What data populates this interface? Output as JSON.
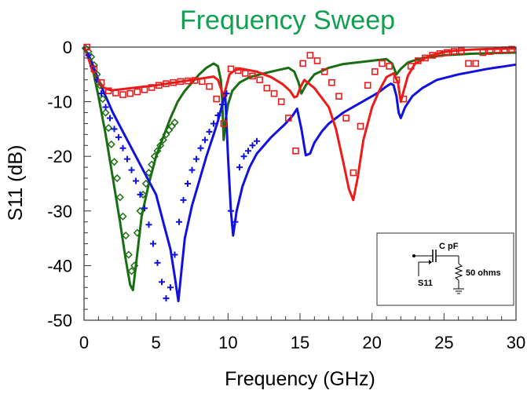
{
  "chart_data": {
    "type": "line",
    "title": "Frequency Sweep",
    "xlabel": "Frequency (GHz)",
    "ylabel": "S11 (dB)",
    "xlim": [
      0,
      30
    ],
    "ylim": [
      -50,
      0
    ],
    "xticks": [
      "0",
      "5",
      "10",
      "15",
      "20",
      "25",
      "30"
    ],
    "yticks": [
      "0",
      "-10",
      "-20",
      "-30",
      "-40",
      "-50"
    ],
    "grid": false,
    "colors": {
      "title": "#10a050",
      "green": "#1a6e12",
      "blue": "#1010e0",
      "red": "#ee1a1a"
    },
    "inset": {
      "capacitor_label": "C pF",
      "port_label": "S11",
      "resistor_label": "50 ohms"
    },
    "series": [
      {
        "color": "#1a6e12",
        "style": "line",
        "x": [
          0,
          0.3,
          0.6,
          1.0,
          1.5,
          2.0,
          2.5,
          2.9,
          3.2,
          3.4,
          3.6,
          4.0,
          4.5,
          5.0,
          5.5,
          6.0,
          6.5,
          7.0,
          7.5,
          8.0,
          8.5,
          9.0,
          9.3,
          9.5,
          9.6,
          9.7,
          9.85,
          10.0,
          10.3,
          10.8,
          11.5,
          12.5,
          13.5,
          14.2,
          14.6,
          14.9,
          15.1,
          15.4,
          16.0,
          17.0,
          18.0,
          19.0,
          20.0,
          21.0,
          21.4,
          21.7,
          22.0,
          22.5,
          23.5,
          25.0,
          27.0,
          30.0
        ],
        "y": [
          0,
          -1.5,
          -4,
          -9,
          -16,
          -24,
          -32,
          -39,
          -43.5,
          -44.5,
          -40,
          -31,
          -25,
          -20,
          -16.5,
          -13,
          -10,
          -8,
          -6.5,
          -5,
          -3.8,
          -3,
          -3.5,
          -6,
          -10,
          -17,
          -13,
          -10.5,
          -8,
          -6.5,
          -5.5,
          -4.8,
          -4.2,
          -3.8,
          -4.5,
          -6.5,
          -8.5,
          -7,
          -5,
          -3.8,
          -3.1,
          -2.8,
          -2.5,
          -2.2,
          -3,
          -5,
          -4,
          -2.8,
          -2,
          -1.5,
          -1.2,
          -1
        ]
      },
      {
        "color": "#1010e0",
        "style": "line",
        "x": [
          0,
          0.5,
          1.0,
          2.0,
          3.0,
          4.0,
          5.0,
          5.5,
          6.0,
          6.3,
          6.55,
          6.8,
          7.0,
          7.5,
          8.0,
          8.5,
          9.0,
          9.3,
          9.6,
          9.8,
          10.0,
          10.2,
          10.35,
          10.6,
          11.0,
          11.5,
          12.0,
          13.0,
          14.0,
          14.5,
          14.8,
          15.1,
          15.4,
          15.7,
          16.0,
          16.5,
          17.0,
          18.0,
          19.0,
          20.0,
          20.5,
          21.0,
          21.3,
          21.5,
          21.7,
          21.85,
          22.0,
          22.3,
          22.8,
          23.5,
          24.5,
          26.0,
          28.0,
          30.0
        ],
        "y": [
          0,
          -2.5,
          -6,
          -12,
          -17,
          -22,
          -27,
          -32,
          -37,
          -42,
          -46.5,
          -40,
          -35,
          -29,
          -24.5,
          -20,
          -16,
          -13.5,
          -10.5,
          -8.5,
          -20,
          -30,
          -34.5,
          -30,
          -25.5,
          -22,
          -19.5,
          -16.5,
          -14,
          -12.5,
          -11.3,
          -15,
          -19.8,
          -19.5,
          -17.5,
          -15.5,
          -14,
          -12,
          -10.5,
          -9,
          -8.2,
          -7.2,
          -6.7,
          -7,
          -9,
          -12,
          -13,
          -11,
          -9,
          -7.5,
          -6,
          -5,
          -4,
          -3.2
        ]
      },
      {
        "color": "#ee1a1a",
        "style": "line",
        "x": [
          0,
          0.3,
          0.6,
          1.0,
          1.3,
          1.7,
          2.0,
          3.0,
          4.0,
          5.0,
          6.0,
          7.0,
          8.0,
          9.0,
          9.3,
          9.5,
          9.7,
          9.9,
          10.1,
          10.5,
          11.0,
          12.0,
          13.0,
          13.8,
          14.3,
          14.6,
          14.8,
          15.0,
          15.3,
          16.0,
          17.0,
          17.5,
          18.0,
          18.4,
          18.7,
          19.0,
          19.4,
          20.0,
          20.5,
          21.0,
          21.5,
          21.8,
          22.0,
          22.2,
          22.5,
          23.0,
          24.0,
          25.0,
          26.0,
          27.0,
          28.0,
          29.0,
          30.0
        ],
        "y": [
          0,
          -2,
          -4.5,
          -6,
          -7.3,
          -7.8,
          -7.9,
          -7.6,
          -7.3,
          -7,
          -6.6,
          -6.2,
          -5.8,
          -5.4,
          -6,
          -7.5,
          -9,
          -7,
          -5,
          -4.2,
          -4,
          -4.5,
          -5.5,
          -6.8,
          -8,
          -9.2,
          -9,
          -7.5,
          -6,
          -7.5,
          -11,
          -15,
          -21,
          -26,
          -28,
          -24,
          -17,
          -11,
          -8,
          -5.5,
          -4.8,
          -6.5,
          -10,
          -8,
          -5.2,
          -3,
          -1.6,
          -0.9,
          -0.6,
          -0.45,
          -0.35,
          -0.3,
          -0.25
        ]
      },
      {
        "color": "#1a6e12",
        "style": "diamond-markers",
        "x": [
          0.1,
          0.3,
          0.5,
          0.7,
          0.9,
          1.1,
          1.3,
          1.5,
          1.7,
          1.9,
          2.1,
          2.3,
          2.5,
          2.7,
          2.9,
          3.1,
          3.3,
          3.5,
          3.7,
          3.9,
          4.1,
          4.3,
          4.5,
          4.7,
          4.9,
          5.1,
          5.3,
          5.5,
          5.7,
          5.9,
          6.1,
          6.3
        ],
        "y": [
          -0.2,
          -0.8,
          -1.8,
          -3.3,
          -5,
          -7,
          -9.5,
          -12,
          -14.8,
          -17.8,
          -21,
          -24,
          -27.5,
          -31,
          -34.5,
          -38,
          -41,
          -40,
          -34,
          -30,
          -27,
          -25,
          -23,
          -21.5,
          -20,
          -19,
          -18,
          -17,
          -16,
          -15.2,
          -14.5,
          -13.8
        ]
      },
      {
        "color": "#1010e0",
        "style": "plus-markers",
        "x": [
          0.3,
          0.6,
          0.9,
          1.2,
          1.5,
          1.8,
          2.1,
          2.4,
          2.7,
          3.0,
          3.3,
          3.6,
          3.9,
          4.2,
          4.5,
          4.8,
          5.1,
          5.4,
          5.7,
          6.0,
          6.3,
          6.6,
          6.9,
          7.2,
          7.5,
          7.8,
          8.1,
          8.4,
          8.7,
          9.0,
          9.3,
          9.6,
          9.9,
          10.2,
          10.5,
          10.8,
          11.1,
          11.4,
          11.7,
          12.0
        ],
        "y": [
          -1.5,
          -3.5,
          -6,
          -8.5,
          -11,
          -13,
          -15,
          -16.5,
          -18.5,
          -20.5,
          -22.5,
          -24.5,
          -27,
          -29.5,
          -32.5,
          -36,
          -39.5,
          -43,
          -46,
          -44,
          -38,
          -32,
          -28,
          -25,
          -22.5,
          -20.5,
          -18.5,
          -17,
          -15.5,
          -14,
          -12.5,
          -10.5,
          -8.5,
          -30,
          -32,
          -22,
          -20,
          -19,
          -18,
          -17.2
        ]
      },
      {
        "color": "#ee1a1a",
        "style": "square-markers",
        "x": [
          0.2,
          0.7,
          1.2,
          1.7,
          2.2,
          2.7,
          3.2,
          3.7,
          4.2,
          4.7,
          5.2,
          5.7,
          6.2,
          6.7,
          7.2,
          7.7,
          8.2,
          8.7,
          9.2,
          9.7,
          10.2,
          10.7,
          11.2,
          11.7,
          12.2,
          12.7,
          13.2,
          13.7,
          14.2,
          14.7,
          15.2,
          15.7,
          16.2,
          16.7,
          17.2,
          17.7,
          18.2,
          18.7,
          19.2,
          19.7,
          20.2,
          20.7,
          21.2,
          21.7,
          22.2,
          22.7,
          23.2,
          23.7,
          24.2,
          24.7,
          25.2,
          25.7,
          26.2,
          26.7,
          27.2,
          27.7,
          28.2,
          28.7,
          29.2,
          29.7
        ],
        "y": [
          0,
          -4,
          -6.5,
          -8,
          -8.4,
          -8.7,
          -8.5,
          -8.2,
          -7.8,
          -7.4,
          -7,
          -6.7,
          -6.5,
          -6.3,
          -6.2,
          -6.1,
          -6.3,
          -7.2,
          -9.5,
          -14,
          -4,
          -4.3,
          -4.8,
          -5.3,
          -6,
          -7.5,
          -8.5,
          -10,
          -13,
          -19,
          -3,
          -1.5,
          -2.5,
          -4.5,
          -6.5,
          -9,
          -13,
          -23,
          -14.5,
          -7,
          -4.5,
          -3,
          -3.5,
          -6,
          -9.5,
          -3.5,
          -2.5,
          -2,
          -1.5,
          -1.2,
          -1,
          -0.8,
          -0.7,
          -3,
          -3,
          -1,
          -0.8,
          -0.6,
          -0.5,
          -0.4
        ]
      }
    ]
  }
}
